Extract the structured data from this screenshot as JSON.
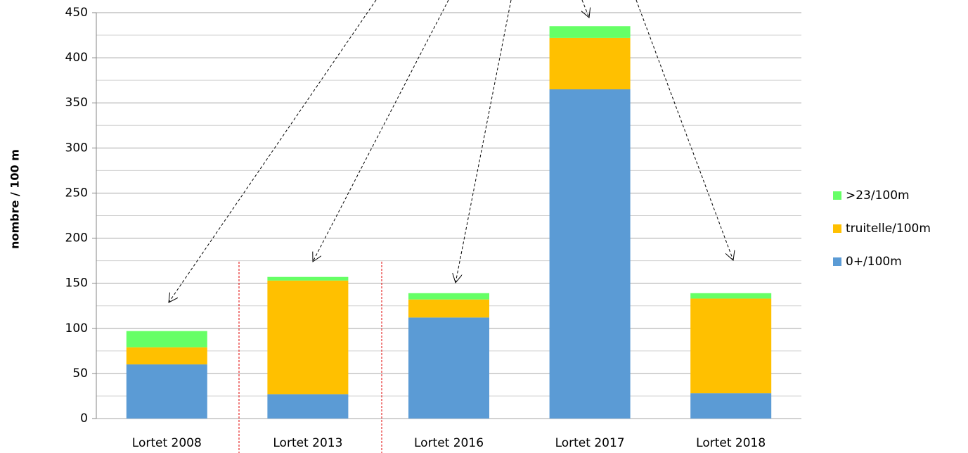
{
  "chart_data": {
    "type": "stacked_bar",
    "y_label": "nombre / 100 m",
    "categories": [
      "Lortet 2008",
      "Lortet 2013",
      "Lortet 2016",
      "Lortet 2017",
      "Lortet 2018"
    ],
    "series": [
      {
        "name": "0+/100m",
        "color": "#5b9bd5",
        "values": [
          60,
          27,
          112,
          365,
          28
        ]
      },
      {
        "name": "truitelle/100m",
        "color": "#ffc000",
        "values": [
          19,
          126,
          20,
          57,
          105
        ]
      },
      {
        "name": ">23/100m",
        "color": "#66ff66",
        "values": [
          18,
          4,
          7,
          13,
          6
        ]
      }
    ],
    "ylim": [
      0,
      450
    ],
    "yticks": [
      0,
      50,
      100,
      150,
      200,
      250,
      300,
      350,
      400,
      450
    ],
    "minor_yticks": [
      25,
      75,
      125,
      175,
      225,
      275,
      325,
      375,
      425
    ],
    "grid": true,
    "legend": "right"
  }
}
